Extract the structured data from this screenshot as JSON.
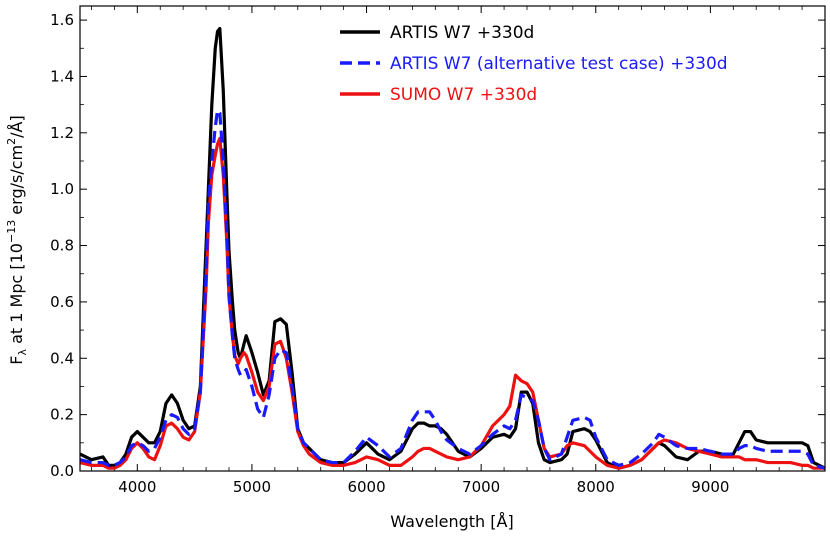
{
  "chart_data": {
    "type": "line",
    "xlabel": "Wavelength [Å]",
    "ylabel": {
      "prefix": "F",
      "sub": "λ",
      "mid": " at 1 Mpc [10",
      "sup1": "−13",
      "mid2": " erg/s/cm",
      "sup2": "2",
      "end": "/Å]"
    },
    "xlim": [
      3500,
      10000
    ],
    "ylim": [
      0,
      1.65
    ],
    "xticks": [
      4000,
      5000,
      6000,
      7000,
      8000,
      9000
    ],
    "yticks": [
      0.0,
      0.2,
      0.4,
      0.6,
      0.8,
      1.0,
      1.2,
      1.4,
      1.6
    ],
    "legend_position": "top-right",
    "series": [
      {
        "name": "ARTIS W7 +330d",
        "color": "#000000",
        "style": "solid",
        "x": [
          3500,
          3600,
          3700,
          3750,
          3800,
          3850,
          3900,
          3950,
          4000,
          4050,
          4100,
          4150,
          4200,
          4250,
          4300,
          4350,
          4400,
          4450,
          4500,
          4550,
          4600,
          4620,
          4650,
          4680,
          4700,
          4720,
          4750,
          4780,
          4800,
          4830,
          4850,
          4880,
          4900,
          4930,
          4950,
          5000,
          5050,
          5100,
          5150,
          5200,
          5250,
          5300,
          5350,
          5400,
          5450,
          5500,
          5600,
          5700,
          5800,
          5900,
          6000,
          6100,
          6200,
          6300,
          6400,
          6450,
          6500,
          6550,
          6600,
          6650,
          6700,
          6800,
          6900,
          7000,
          7100,
          7200,
          7250,
          7300,
          7350,
          7400,
          7450,
          7500,
          7550,
          7600,
          7700,
          7750,
          7800,
          7900,
          7950,
          8000,
          8100,
          8200,
          8300,
          8400,
          8500,
          8550,
          8600,
          8700,
          8800,
          8900,
          9000,
          9100,
          9200,
          9250,
          9300,
          9350,
          9400,
          9500,
          9600,
          9700,
          9800,
          9850,
          9900,
          10000
        ],
        "values": [
          0.06,
          0.04,
          0.05,
          0.02,
          0.02,
          0.03,
          0.06,
          0.12,
          0.14,
          0.12,
          0.1,
          0.1,
          0.14,
          0.24,
          0.27,
          0.24,
          0.18,
          0.15,
          0.16,
          0.3,
          0.8,
          1.0,
          1.3,
          1.5,
          1.56,
          1.57,
          1.35,
          1.0,
          0.78,
          0.6,
          0.5,
          0.42,
          0.4,
          0.45,
          0.48,
          0.42,
          0.35,
          0.27,
          0.32,
          0.53,
          0.54,
          0.52,
          0.35,
          0.15,
          0.1,
          0.08,
          0.04,
          0.03,
          0.03,
          0.06,
          0.1,
          0.06,
          0.04,
          0.07,
          0.15,
          0.17,
          0.17,
          0.16,
          0.16,
          0.15,
          0.13,
          0.07,
          0.05,
          0.08,
          0.12,
          0.13,
          0.12,
          0.15,
          0.28,
          0.28,
          0.24,
          0.1,
          0.04,
          0.03,
          0.04,
          0.06,
          0.14,
          0.15,
          0.14,
          0.11,
          0.03,
          0.01,
          0.02,
          0.04,
          0.08,
          0.1,
          0.09,
          0.05,
          0.04,
          0.07,
          0.07,
          0.06,
          0.06,
          0.1,
          0.14,
          0.14,
          0.11,
          0.1,
          0.1,
          0.1,
          0.1,
          0.09,
          0.03,
          0.01
        ]
      },
      {
        "name": "ARTIS W7 (alternative test case) +330d",
        "color": "#1a1aff",
        "style": "dashed",
        "x": [
          3500,
          3600,
          3700,
          3750,
          3800,
          3850,
          3900,
          3950,
          4000,
          4050,
          4100,
          4150,
          4200,
          4250,
          4300,
          4350,
          4400,
          4450,
          4500,
          4550,
          4600,
          4620,
          4650,
          4680,
          4700,
          4720,
          4750,
          4780,
          4800,
          4830,
          4850,
          4880,
          4900,
          4930,
          4950,
          5000,
          5050,
          5100,
          5150,
          5200,
          5250,
          5300,
          5350,
          5400,
          5450,
          5500,
          5600,
          5700,
          5800,
          5900,
          6000,
          6100,
          6200,
          6300,
          6400,
          6450,
          6500,
          6550,
          6600,
          6650,
          6700,
          6800,
          6900,
          7000,
          7100,
          7200,
          7250,
          7300,
          7350,
          7400,
          7450,
          7500,
          7550,
          7600,
          7700,
          7750,
          7800,
          7900,
          7950,
          8000,
          8100,
          8200,
          8300,
          8400,
          8500,
          8550,
          8600,
          8700,
          8800,
          8900,
          9000,
          9100,
          9200,
          9250,
          9300,
          9350,
          9400,
          9500,
          9600,
          9700,
          9800,
          9850,
          9900,
          10000
        ],
        "values": [
          0.04,
          0.03,
          0.03,
          0.02,
          0.02,
          0.03,
          0.05,
          0.09,
          0.1,
          0.09,
          0.07,
          0.08,
          0.12,
          0.18,
          0.2,
          0.19,
          0.15,
          0.13,
          0.15,
          0.28,
          0.7,
          0.95,
          1.1,
          1.22,
          1.28,
          1.27,
          1.1,
          0.85,
          0.62,
          0.48,
          0.4,
          0.36,
          0.34,
          0.35,
          0.36,
          0.3,
          0.22,
          0.19,
          0.27,
          0.4,
          0.43,
          0.42,
          0.3,
          0.15,
          0.1,
          0.08,
          0.04,
          0.03,
          0.03,
          0.07,
          0.12,
          0.09,
          0.05,
          0.08,
          0.18,
          0.21,
          0.21,
          0.21,
          0.18,
          0.14,
          0.11,
          0.08,
          0.06,
          0.09,
          0.13,
          0.16,
          0.15,
          0.18,
          0.27,
          0.26,
          0.25,
          0.18,
          0.08,
          0.04,
          0.06,
          0.12,
          0.18,
          0.19,
          0.18,
          0.12,
          0.04,
          0.02,
          0.03,
          0.06,
          0.1,
          0.13,
          0.12,
          0.09,
          0.08,
          0.08,
          0.07,
          0.06,
          0.06,
          0.08,
          0.09,
          0.09,
          0.08,
          0.07,
          0.07,
          0.07,
          0.07,
          0.06,
          0.02,
          0.01
        ]
      },
      {
        "name": "SUMO W7 +330d",
        "color": "#ee1111",
        "style": "solid",
        "x": [
          3500,
          3600,
          3700,
          3750,
          3800,
          3850,
          3900,
          3950,
          4000,
          4050,
          4100,
          4150,
          4200,
          4250,
          4300,
          4350,
          4400,
          4450,
          4500,
          4550,
          4600,
          4620,
          4650,
          4680,
          4700,
          4720,
          4750,
          4780,
          4800,
          4830,
          4850,
          4880,
          4900,
          4930,
          4950,
          5000,
          5050,
          5100,
          5150,
          5200,
          5250,
          5300,
          5350,
          5400,
          5450,
          5500,
          5600,
          5700,
          5800,
          5900,
          6000,
          6100,
          6200,
          6300,
          6400,
          6450,
          6500,
          6550,
          6600,
          6650,
          6700,
          6800,
          6900,
          7000,
          7100,
          7200,
          7250,
          7300,
          7350,
          7400,
          7450,
          7500,
          7550,
          7600,
          7700,
          7750,
          7800,
          7900,
          7950,
          8000,
          8100,
          8200,
          8300,
          8400,
          8500,
          8550,
          8600,
          8700,
          8800,
          8900,
          9000,
          9100,
          9200,
          9250,
          9300,
          9350,
          9400,
          9500,
          9600,
          9700,
          9800,
          9850,
          9900,
          10000
        ],
        "values": [
          0.03,
          0.02,
          0.02,
          0.01,
          0.01,
          0.02,
          0.04,
          0.08,
          0.1,
          0.08,
          0.05,
          0.04,
          0.09,
          0.16,
          0.17,
          0.15,
          0.12,
          0.11,
          0.14,
          0.28,
          0.65,
          0.88,
          1.05,
          1.12,
          1.16,
          1.18,
          1.05,
          0.82,
          0.62,
          0.48,
          0.41,
          0.38,
          0.4,
          0.42,
          0.41,
          0.35,
          0.28,
          0.25,
          0.3,
          0.45,
          0.46,
          0.4,
          0.28,
          0.14,
          0.09,
          0.06,
          0.03,
          0.02,
          0.02,
          0.03,
          0.05,
          0.04,
          0.02,
          0.02,
          0.05,
          0.07,
          0.08,
          0.08,
          0.07,
          0.06,
          0.05,
          0.04,
          0.05,
          0.09,
          0.16,
          0.2,
          0.23,
          0.34,
          0.32,
          0.31,
          0.28,
          0.18,
          0.08,
          0.05,
          0.06,
          0.09,
          0.1,
          0.09,
          0.07,
          0.05,
          0.02,
          0.01,
          0.02,
          0.04,
          0.08,
          0.1,
          0.11,
          0.1,
          0.08,
          0.07,
          0.06,
          0.05,
          0.05,
          0.05,
          0.04,
          0.04,
          0.04,
          0.03,
          0.03,
          0.03,
          0.02,
          0.02,
          0.01,
          0.01
        ]
      }
    ]
  }
}
